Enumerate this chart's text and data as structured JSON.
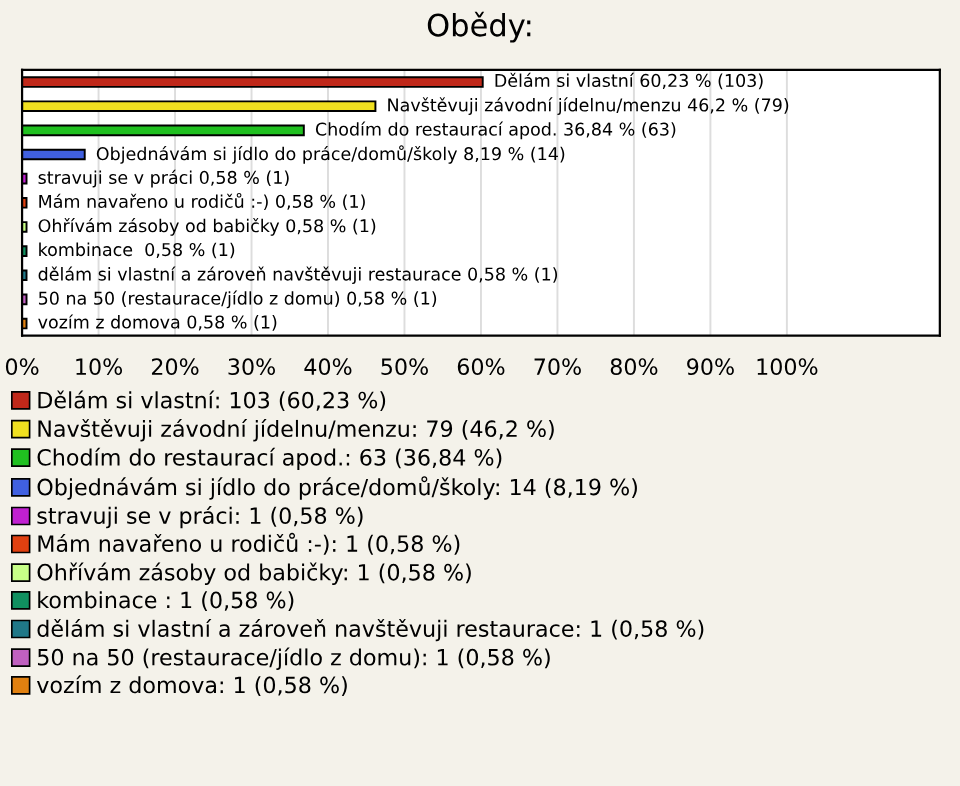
{
  "chart_data": {
    "type": "bar",
    "orientation": "horizontal",
    "title": "Obědy:",
    "categories": [
      null,
      null,
      null,
      null,
      null,
      null,
      null,
      null,
      null,
      null,
      null
    ],
    "series": [
      {
        "name": "Dělám si vlastní: 103 (60,23 %)",
        "color": "#c0281a",
        "values": [
          60.23,
          null,
          null,
          null,
          null,
          null,
          null,
          null,
          null,
          null,
          null
        ],
        "value_labels": [
          "Dělám si vlastní 60,23 % (103)",
          null,
          null,
          null,
          null,
          null,
          null,
          null,
          null,
          null,
          null
        ]
      },
      {
        "name": "Navštěvuji závodní jídelnu/menzu: 79 (46,2 %)",
        "color": "#f0e020",
        "values": [
          null,
          46.2,
          null,
          null,
          null,
          null,
          null,
          null,
          null,
          null,
          null
        ],
        "value_labels": [
          null,
          "Navštěvuji závodní jídelnu/menzu 46,2 % (79)",
          null,
          null,
          null,
          null,
          null,
          null,
          null,
          null,
          null
        ]
      },
      {
        "name": "Chodím do restaurací apod.: 63 (36,84 %)",
        "color": "#20c020",
        "values": [
          null,
          null,
          36.84,
          null,
          null,
          null,
          null,
          null,
          null,
          null,
          null
        ],
        "value_labels": [
          null,
          null,
          "Chodím do restaurací apod. 36,84 % (63)",
          null,
          null,
          null,
          null,
          null,
          null,
          null,
          null
        ]
      },
      {
        "name": "Objednávám si jídlo do práce/domů/školy: 14 (8,19 %)",
        "color": "#4060e0",
        "values": [
          null,
          null,
          null,
          8.19,
          null,
          null,
          null,
          null,
          null,
          null,
          null
        ],
        "value_labels": [
          null,
          null,
          null,
          "Objednávám si jídlo do práce/domů/školy 8,19 % (14)",
          null,
          null,
          null,
          null,
          null,
          null,
          null
        ]
      },
      {
        "name": "stravuji se v práci: 1 (0,58 %)",
        "color": "#c020d0",
        "values": [
          null,
          null,
          null,
          null,
          0.58,
          null,
          null,
          null,
          null,
          null,
          null
        ],
        "value_labels": [
          null,
          null,
          null,
          null,
          "stravuji se v práci 0,58 % (1)",
          null,
          null,
          null,
          null,
          null,
          null
        ]
      },
      {
        "name": "Mám navařeno u rodičů :-): 1 (0,58 %)",
        "color": "#e04010",
        "values": [
          null,
          null,
          null,
          null,
          null,
          0.58,
          null,
          null,
          null,
          null,
          null
        ],
        "value_labels": [
          null,
          null,
          null,
          null,
          null,
          "Mám navařeno u rodičů :-) 0,58 % (1)",
          null,
          null,
          null,
          null,
          null
        ]
      },
      {
        "name": "Ohřívám zásoby od babičky: 1 (0,58 %)",
        "color": "#c8ff88",
        "values": [
          null,
          null,
          null,
          null,
          null,
          null,
          0.58,
          null,
          null,
          null,
          null
        ],
        "value_labels": [
          null,
          null,
          null,
          null,
          null,
          null,
          "Ohřívám zásoby od babičky 0,58 % (1)",
          null,
          null,
          null,
          null
        ]
      },
      {
        "name": "kombinace : 1 (0,58 %)",
        "color": "#109060",
        "values": [
          null,
          null,
          null,
          null,
          null,
          null,
          null,
          0.58,
          null,
          null,
          null
        ],
        "value_labels": [
          null,
          null,
          null,
          null,
          null,
          null,
          null,
          "kombinace  0,58 % (1)",
          null,
          null,
          null
        ]
      },
      {
        "name": "dělám si vlastní a zároveň navštěvuji restaurace: 1 (0,58 %)",
        "color": "#207888",
        "values": [
          null,
          null,
          null,
          null,
          null,
          null,
          null,
          null,
          0.58,
          null,
          null
        ],
        "value_labels": [
          null,
          null,
          null,
          null,
          null,
          null,
          null,
          null,
          "dělám si vlastní a zároveň navštěvuji restaurace 0,58 % (1)",
          null,
          null
        ]
      },
      {
        "name": "50 na 50 (restaurace/jídlo z domu): 1 (0,58 %)",
        "color": "#c060c0",
        "values": [
          null,
          null,
          null,
          null,
          null,
          null,
          null,
          null,
          null,
          0.58,
          null
        ],
        "value_labels": [
          null,
          null,
          null,
          null,
          null,
          null,
          null,
          null,
          null,
          "50 na 50 (restaurace/jídlo z domu) 0,58 % (1)",
          null
        ]
      },
      {
        "name": "vozím z domova: 1 (0,58 %)",
        "color": "#e08010",
        "values": [
          null,
          null,
          null,
          null,
          null,
          null,
          null,
          null,
          null,
          null,
          0.58
        ],
        "value_labels": [
          null,
          null,
          null,
          null,
          null,
          null,
          null,
          null,
          null,
          null,
          "vozím z domova 0,58 % (1)"
        ]
      }
    ],
    "xlim": [
      0,
      120
    ],
    "xticks": [
      {
        "value": 0,
        "label": "0%"
      },
      {
        "value": 10,
        "label": "10%"
      },
      {
        "value": 20,
        "label": "20%"
      },
      {
        "value": 30,
        "label": "30%"
      },
      {
        "value": 40,
        "label": "40%"
      },
      {
        "value": 50,
        "label": "50%"
      },
      {
        "value": 60,
        "label": "60%"
      },
      {
        "value": 70,
        "label": "70%"
      },
      {
        "value": 80,
        "label": "80%"
      },
      {
        "value": 90,
        "label": "90%"
      },
      {
        "value": 100,
        "label": "100%"
      }
    ],
    "grid": "x",
    "legend": "bottom"
  }
}
